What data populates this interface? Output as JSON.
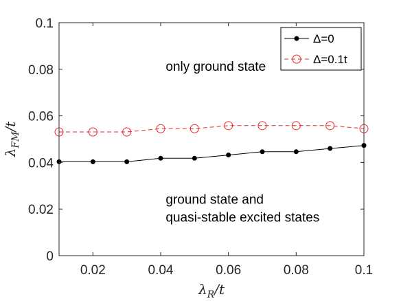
{
  "chart_data": {
    "type": "line",
    "x": [
      0.01,
      0.02,
      0.03,
      0.04,
      0.05,
      0.06,
      0.07,
      0.08,
      0.09,
      0.1
    ],
    "series": [
      {
        "name": "Δ=0",
        "color": "#000000",
        "marker": "filled-circle",
        "linestyle": "solid",
        "values": [
          0.0403,
          0.0403,
          0.0403,
          0.0418,
          0.0418,
          0.0432,
          0.0446,
          0.0446,
          0.046,
          0.0473
        ]
      },
      {
        "name": "Δ=0.1t",
        "color": "#e8282b",
        "marker": "open-circle",
        "linestyle": "dashed",
        "values": [
          0.0531,
          0.0531,
          0.0531,
          0.0545,
          0.0545,
          0.0558,
          0.0558,
          0.0558,
          0.0558,
          0.0545
        ]
      }
    ],
    "xlabel_main": "λ",
    "xlabel_sub": "R",
    "xlabel_tail": "/t",
    "ylabel_main": "λ",
    "ylabel_sub": "FM",
    "ylabel_tail": "/t",
    "xlim": [
      0.01,
      0.1
    ],
    "ylim": [
      0,
      0.1
    ],
    "xticks": [
      0.02,
      0.04,
      0.06,
      0.08,
      0.1
    ],
    "xtick_labels": [
      "0.02",
      "0.04",
      "0.06",
      "0.08",
      "0.1"
    ],
    "yticks": [
      0,
      0.02,
      0.04,
      0.06,
      0.08,
      0.1
    ],
    "ytick_labels": [
      "0",
      "0.02",
      "0.04",
      "0.06",
      "0.08",
      "0.1"
    ],
    "grid": false,
    "legend_position": "top-right",
    "annotations": [
      {
        "text": "only ground state",
        "x": 0.0415,
        "y": 0.0793
      },
      {
        "text": "ground state and",
        "x": 0.0415,
        "y": 0.0222
      },
      {
        "text": "quasi-stable excited states",
        "x": 0.0415,
        "y": 0.0146
      }
    ]
  }
}
